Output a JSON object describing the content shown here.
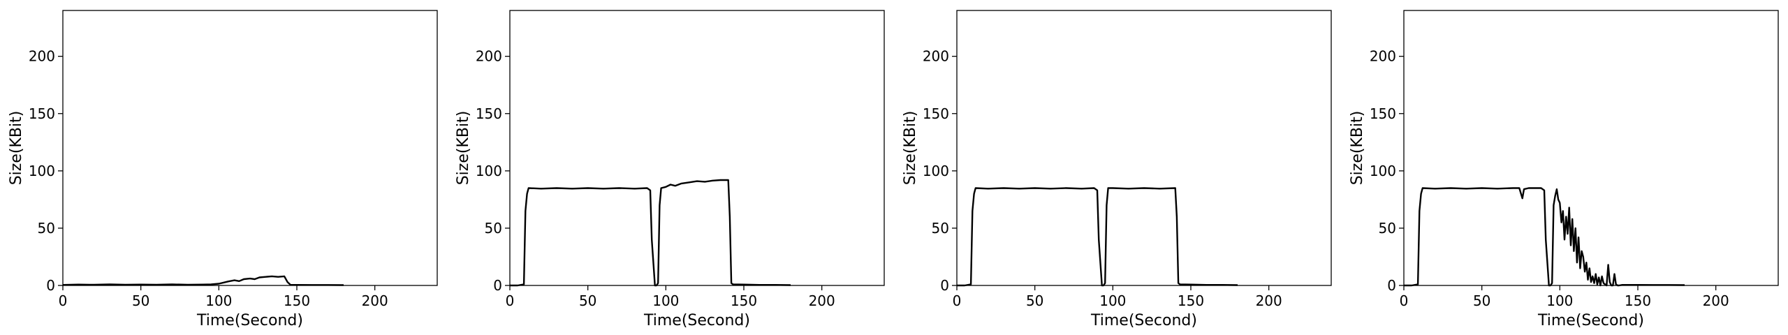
{
  "chart_data": [
    {
      "type": "line",
      "xlabel": "Time(Second)",
      "ylabel": "Size(KBit)",
      "xlim": [
        0,
        240
      ],
      "ylim": [
        0,
        240
      ],
      "xticks": [
        0,
        50,
        100,
        150,
        200
      ],
      "yticks": [
        0,
        50,
        100,
        150,
        200
      ],
      "grid": false,
      "series": [
        {
          "x": [
            0,
            10,
            20,
            30,
            40,
            50,
            60,
            70,
            80,
            90,
            95,
            100,
            103,
            106,
            110,
            113,
            116,
            120,
            123,
            126,
            130,
            134,
            138,
            142,
            144,
            146,
            150,
            160,
            170,
            180
          ],
          "y": [
            0.5,
            0.8,
            0.6,
            0.9,
            0.7,
            0.8,
            0.6,
            0.9,
            0.7,
            0.8,
            1.0,
            1.5,
            2.5,
            3.5,
            4.5,
            3.8,
            5.5,
            6.0,
            5.5,
            7.0,
            7.5,
            8.0,
            7.5,
            8.0,
            3.0,
            0.5,
            0.5,
            0.4,
            0.4,
            0.3
          ]
        }
      ]
    },
    {
      "type": "line",
      "xlabel": "Time(Second)",
      "ylabel": "Size(KBit)",
      "xlim": [
        0,
        240
      ],
      "ylim": [
        0,
        240
      ],
      "xticks": [
        0,
        50,
        100,
        150,
        200
      ],
      "yticks": [
        0,
        50,
        100,
        150,
        200
      ],
      "grid": false,
      "series": [
        {
          "x": [
            0,
            5,
            9,
            10,
            11,
            12,
            20,
            30,
            40,
            50,
            60,
            70,
            80,
            88,
            90,
            91,
            93,
            94,
            95,
            96,
            97,
            100,
            103,
            106,
            110,
            115,
            120,
            125,
            130,
            135,
            140,
            141,
            142,
            143,
            150,
            160,
            170,
            180
          ],
          "y": [
            0,
            0,
            1,
            65,
            80,
            85,
            84.5,
            85,
            84.5,
            85,
            84.5,
            85,
            84.5,
            85,
            83,
            40,
            0,
            0,
            2,
            70,
            85,
            86,
            88,
            87,
            89,
            90,
            91,
            90.5,
            91.5,
            92,
            92,
            60,
            2,
            1,
            0.8,
            0.5,
            0.5,
            0.3
          ]
        }
      ]
    },
    {
      "type": "line",
      "xlabel": "Time(Second)",
      "ylabel": "Size(KBit)",
      "xlim": [
        0,
        240
      ],
      "ylim": [
        0,
        240
      ],
      "xticks": [
        0,
        50,
        100,
        150,
        200
      ],
      "yticks": [
        0,
        50,
        100,
        150,
        200
      ],
      "grid": false,
      "series": [
        {
          "x": [
            0,
            5,
            9,
            10,
            11,
            12,
            20,
            30,
            40,
            50,
            60,
            70,
            80,
            88,
            90,
            91,
            93,
            94,
            95,
            96,
            97,
            100,
            110,
            120,
            130,
            140,
            141,
            142,
            143,
            150,
            160,
            170,
            180
          ],
          "y": [
            0,
            0,
            1,
            65,
            80,
            85,
            84.5,
            85,
            84.5,
            85,
            84.5,
            85,
            84.5,
            85,
            83,
            40,
            0,
            0,
            2,
            70,
            85,
            85,
            84.5,
            85,
            84.5,
            85,
            60,
            2,
            1,
            0.8,
            0.5,
            0.5,
            0.3
          ]
        }
      ]
    },
    {
      "type": "line",
      "xlabel": "Time(Second)",
      "ylabel": "Size(KBit)",
      "xlim": [
        0,
        240
      ],
      "ylim": [
        0,
        240
      ],
      "xticks": [
        0,
        50,
        100,
        150,
        200
      ],
      "yticks": [
        0,
        50,
        100,
        150,
        200
      ],
      "grid": false,
      "series": [
        {
          "x": [
            0,
            5,
            9,
            10,
            11,
            12,
            20,
            30,
            40,
            50,
            60,
            70,
            74,
            76,
            77,
            80,
            88,
            90,
            91,
            93,
            94,
            95,
            96,
            97,
            98,
            99,
            100,
            101,
            102,
            103,
            104,
            105,
            106,
            107,
            108,
            109,
            110,
            111,
            112,
            113,
            114,
            115,
            116,
            117,
            118,
            119,
            120,
            121,
            122,
            123,
            124,
            125,
            126,
            127,
            128,
            129,
            130,
            131,
            132,
            133,
            134,
            135,
            136,
            137,
            138,
            140,
            150,
            160,
            170,
            180
          ],
          "y": [
            0,
            0,
            1,
            65,
            80,
            85,
            84.5,
            85,
            84.5,
            85,
            84.5,
            85,
            85,
            76,
            84,
            85,
            85,
            83,
            40,
            0,
            0,
            2,
            70,
            78,
            84,
            75,
            72,
            55,
            65,
            40,
            60,
            45,
            68,
            35,
            58,
            30,
            50,
            20,
            42,
            15,
            30,
            25,
            12,
            20,
            5,
            15,
            3,
            8,
            2,
            10,
            1,
            7,
            0,
            8,
            2,
            1,
            0,
            18,
            3,
            0,
            0,
            10,
            1,
            0,
            0,
            0.5,
            0.5,
            0.4,
            0.4,
            0.3
          ]
        }
      ]
    }
  ]
}
